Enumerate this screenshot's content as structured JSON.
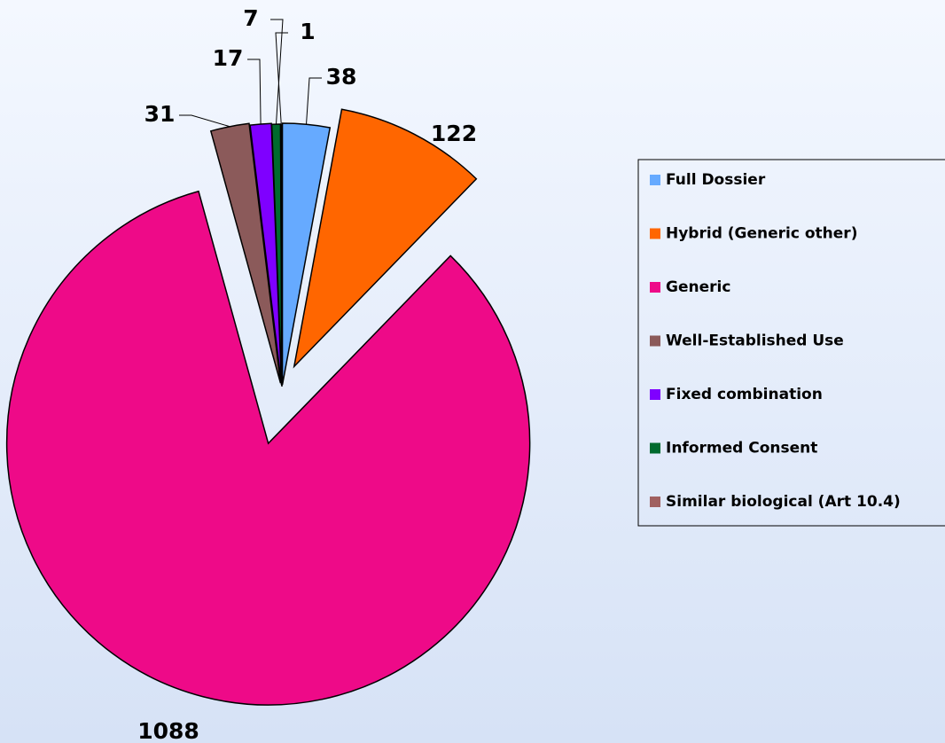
{
  "chart_data": {
    "type": "pie",
    "categories": [
      "Full Dossier",
      "Hybrid (Generic other)",
      "Generic",
      "Well-Established Use",
      "Fixed combination",
      "Informed Consent",
      "Similar biological (Art 10.4)"
    ],
    "values": [
      38,
      122,
      1088,
      31,
      17,
      7,
      1
    ],
    "colors": [
      "#66aaff",
      "#ff6600",
      "#ee0a88",
      "#8b5a5a",
      "#7f00ff",
      "#006a2e",
      "#a06060"
    ],
    "legend": "right"
  }
}
